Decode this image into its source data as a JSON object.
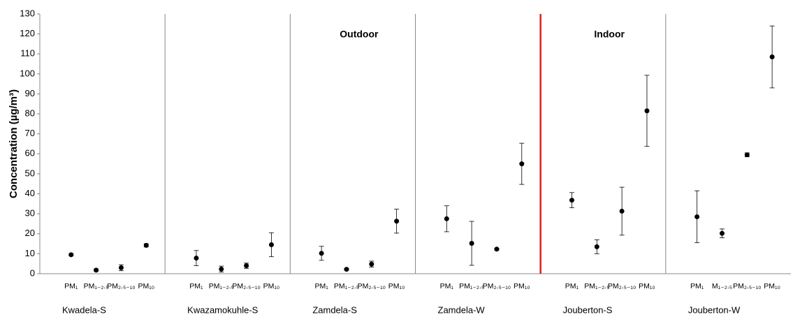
{
  "chart_data": {
    "type": "scatter",
    "y_label": "Concentration (µg/m³)",
    "groups": [
      "Kwadela-S",
      "Kwazamokuhle-S",
      "Zamdela-S",
      "Zamdela-W",
      "Jouberton-S",
      "Jouberton-W"
    ],
    "categories": [
      "PM₁",
      "PM₁₋₂.₅",
      "PM₂.₅₋₁₀",
      "PM₁₀",
      "PM₁",
      "PM₁₋₂.₅",
      "PM₂.₅₋₁₀",
      "PM₁₀",
      "PM₁",
      "PM₁₋₂.₅",
      "PM₂.₅₋₁₀",
      "PM₁₀",
      "PM₁",
      "PM₁₋₂.₅",
      "PM₂.₅₋₁₀",
      "PM₁₀",
      "PM₁",
      "PM₁₋₂.₅",
      "PM₂.₅₋₁₀",
      "PM₁₀",
      "PM₁",
      "M₁₋₂.₅",
      "PM₂.₅₋₁₀",
      "PM₁₀"
    ],
    "values": [
      9.5,
      1.8,
      3,
      14.2,
      7.8,
      2.3,
      4,
      14.5,
      10.2,
      2.2,
      4.8,
      26.3,
      27.5,
      15.2,
      12.3,
      55,
      36.8,
      13.5,
      31.3,
      81.5,
      28.5,
      20.2,
      59.5,
      108.5
    ],
    "errors": [
      0.5,
      0.5,
      1.5,
      0.8,
      3.8,
      1.5,
      1.3,
      6,
      3.5,
      0.3,
      1.5,
      6,
      6.5,
      11,
      0.5,
      10.3,
      3.8,
      3.5,
      12,
      17.8,
      13,
      2.2,
      1,
      15.5
    ],
    "color": "#000000",
    "ylim": [
      0,
      130
    ],
    "yticks": [
      0,
      10,
      20,
      30,
      40,
      50,
      60,
      70,
      80,
      90,
      100,
      110,
      120,
      130
    ],
    "annotations": [
      {
        "text": "Outdoor",
        "group": 2
      },
      {
        "text": "Indoor",
        "group": 4
      }
    ],
    "highlight_divider": 4
  }
}
